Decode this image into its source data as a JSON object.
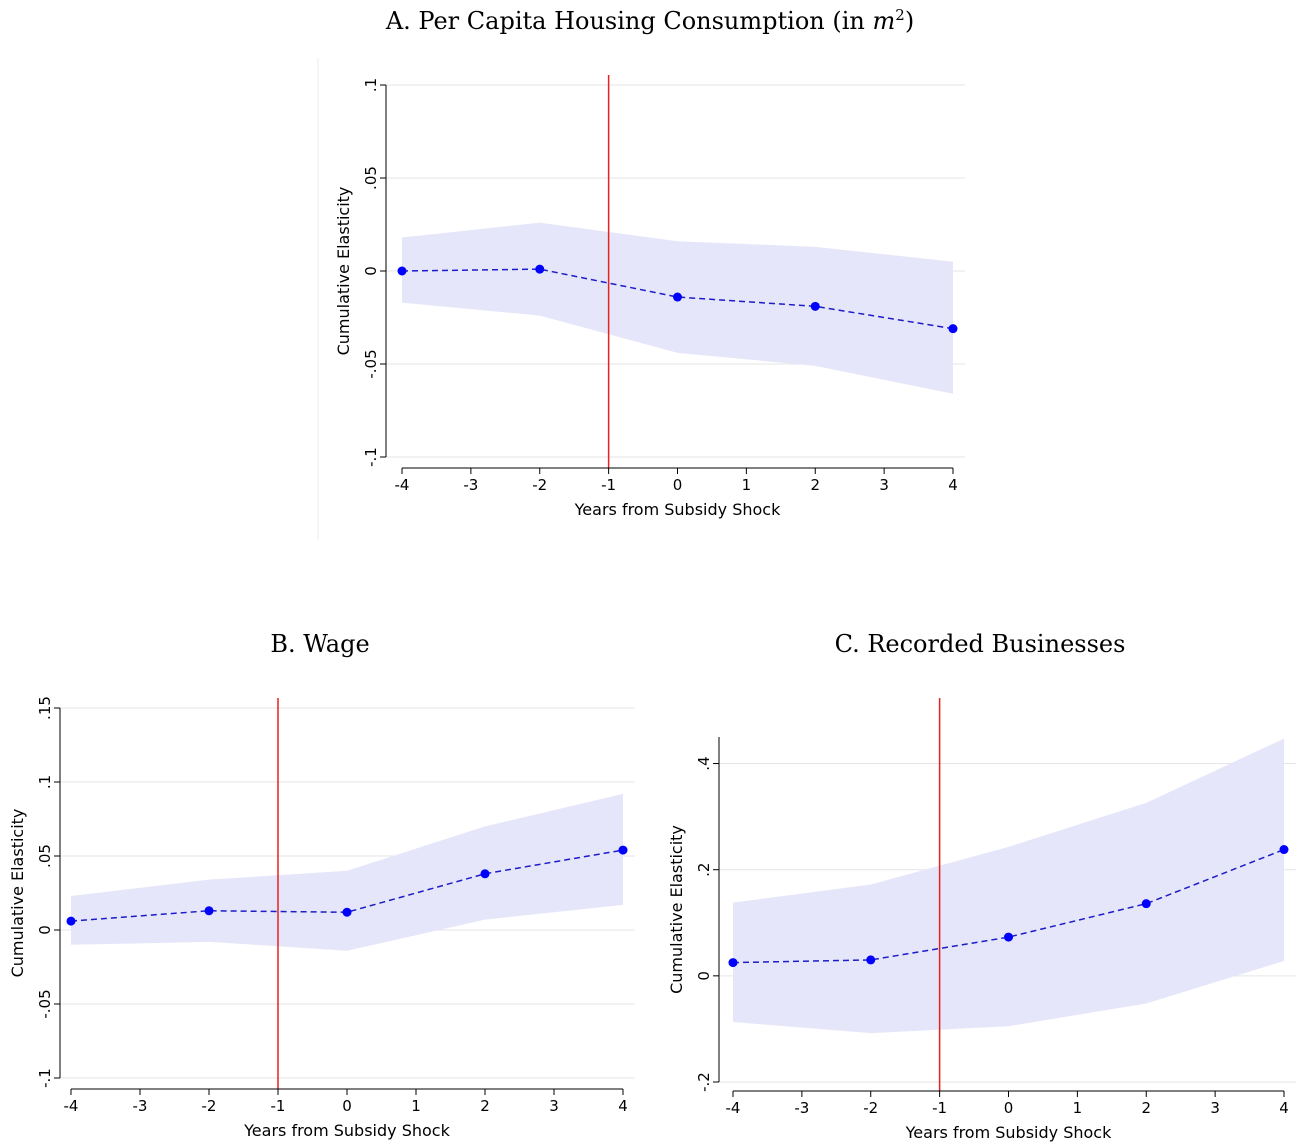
{
  "chart_data": [
    {
      "panel": "A",
      "type": "line",
      "title": "A. Per Capita Housing Consumption (in ",
      "title_math": "m",
      "title_sup": "2",
      "title_close": ")",
      "xlabel": "Years from Subsidy Shock",
      "ylabel": "Cumulative Elasticity",
      "xlim": [
        -4,
        4
      ],
      "ylim": [
        -0.1,
        0.1
      ],
      "xticks": [
        "-4",
        "-3",
        "-2",
        "-1",
        "0",
        "1",
        "2",
        "3",
        "4"
      ],
      "yticks": [
        {
          "v": -0.1,
          "label": "-.1"
        },
        {
          "v": -0.05,
          "label": "-.05"
        },
        {
          "v": 0,
          "label": "0"
        },
        {
          "v": 0.05,
          "label": ".05"
        },
        {
          "v": 0.1,
          "label": ".1"
        }
      ],
      "grid": true,
      "vline_x": -1,
      "x": [
        -4,
        -2,
        0,
        2,
        4
      ],
      "y": [
        0.0,
        0.001,
        -0.014,
        -0.019,
        -0.031
      ],
      "ci_lower": [
        -0.017,
        -0.024,
        -0.044,
        -0.051,
        -0.066
      ],
      "ci_upper": [
        0.018,
        0.026,
        0.016,
        0.013,
        0.005
      ]
    },
    {
      "panel": "B",
      "type": "line",
      "title": "B. Wage",
      "xlabel": "Years from Subsidy Shock",
      "ylabel": "Cumulative Elasticity",
      "xlim": [
        -4,
        4
      ],
      "ylim": [
        -0.1,
        0.15
      ],
      "xticks": [
        "-4",
        "-3",
        "-2",
        "-1",
        "0",
        "1",
        "2",
        "3",
        "4"
      ],
      "yticks": [
        {
          "v": -0.1,
          "label": "-.1"
        },
        {
          "v": -0.05,
          "label": "-.05"
        },
        {
          "v": 0,
          "label": "0"
        },
        {
          "v": 0.05,
          "label": ".05"
        },
        {
          "v": 0.1,
          "label": ".1"
        },
        {
          "v": 0.15,
          "label": ".15"
        }
      ],
      "grid": true,
      "vline_x": -1,
      "x": [
        -4,
        -2,
        0,
        2,
        4
      ],
      "y": [
        0.006,
        0.013,
        0.012,
        0.038,
        0.054
      ],
      "ci_lower": [
        -0.01,
        -0.008,
        -0.014,
        0.007,
        0.017
      ],
      "ci_upper": [
        0.023,
        0.034,
        0.04,
        0.07,
        0.092
      ]
    },
    {
      "panel": "C",
      "type": "line",
      "title": "C. Recorded Businesses",
      "xlabel": "Years from Subsidy Shock",
      "ylabel": "Cumulative Elasticity",
      "xlim": [
        -4,
        4
      ],
      "ylim": [
        -0.2,
        0.45
      ],
      "xticks": [
        "-4",
        "-3",
        "-2",
        "-1",
        "0",
        "1",
        "2",
        "3",
        "4"
      ],
      "yticks": [
        {
          "v": -0.2,
          "label": "-.2"
        },
        {
          "v": 0,
          "label": "0"
        },
        {
          "v": 0.2,
          "label": ".2"
        },
        {
          "v": 0.4,
          "label": ".4"
        }
      ],
      "grid": true,
      "vline_x": -1,
      "x": [
        -4,
        -2,
        0,
        2,
        4
      ],
      "y": [
        0.025,
        0.03,
        0.073,
        0.136,
        0.238
      ],
      "ci_lower": [
        -0.087,
        -0.108,
        -0.095,
        -0.052,
        0.028
      ],
      "ci_upper": [
        0.138,
        0.172,
        0.243,
        0.326,
        0.447
      ]
    }
  ],
  "colors": {
    "point": "#0000ff",
    "line": "#1c1cc8",
    "band": "#e6e6fa",
    "vline": "#e8201e",
    "grid": "#e5e5e5",
    "axis": "#000000"
  }
}
